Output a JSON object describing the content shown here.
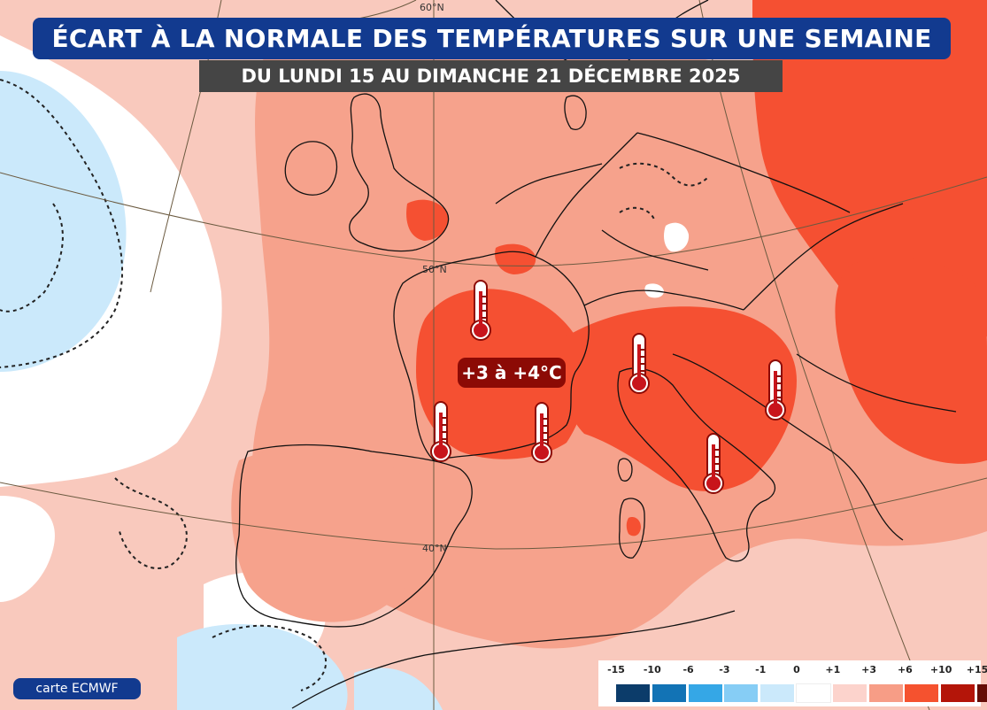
{
  "header": {
    "title": "ÉCART À LA NORMALE DES TEMPÉRATURES SUR UNE SEMAINE",
    "subtitle": "DU LUNDI 15 AU DIMANCHE 21 DÉCEMBRE 2025"
  },
  "annotation": {
    "anomaly_text": "+3 à +4°C"
  },
  "credit": {
    "text": "carte ECMWF"
  },
  "latitude_labels": [
    "60°N",
    "50°N",
    "40°N"
  ],
  "thermometer_icon": "thermometer-icon",
  "legend": {
    "ticks": [
      "-15",
      "-10",
      "-6",
      "-3",
      "-1",
      "0",
      "+1",
      "+3",
      "+6",
      "+10",
      "+15"
    ],
    "colors": [
      "#0c3c6a",
      "#1273b5",
      "#35a7e6",
      "#86cdf5",
      "#cbe9fb",
      "#ffffff",
      "#fcd3cc",
      "#f79d86",
      "#f5522f",
      "#b41509",
      "#650d06"
    ]
  },
  "palette": {
    "light_anomaly": "#f9c9bd",
    "moderate_anomaly": "#f6a28c",
    "strong_anomaly": "#f55032",
    "cold_anomaly": "#cbe9fb",
    "neutral": "#ffffff"
  }
}
